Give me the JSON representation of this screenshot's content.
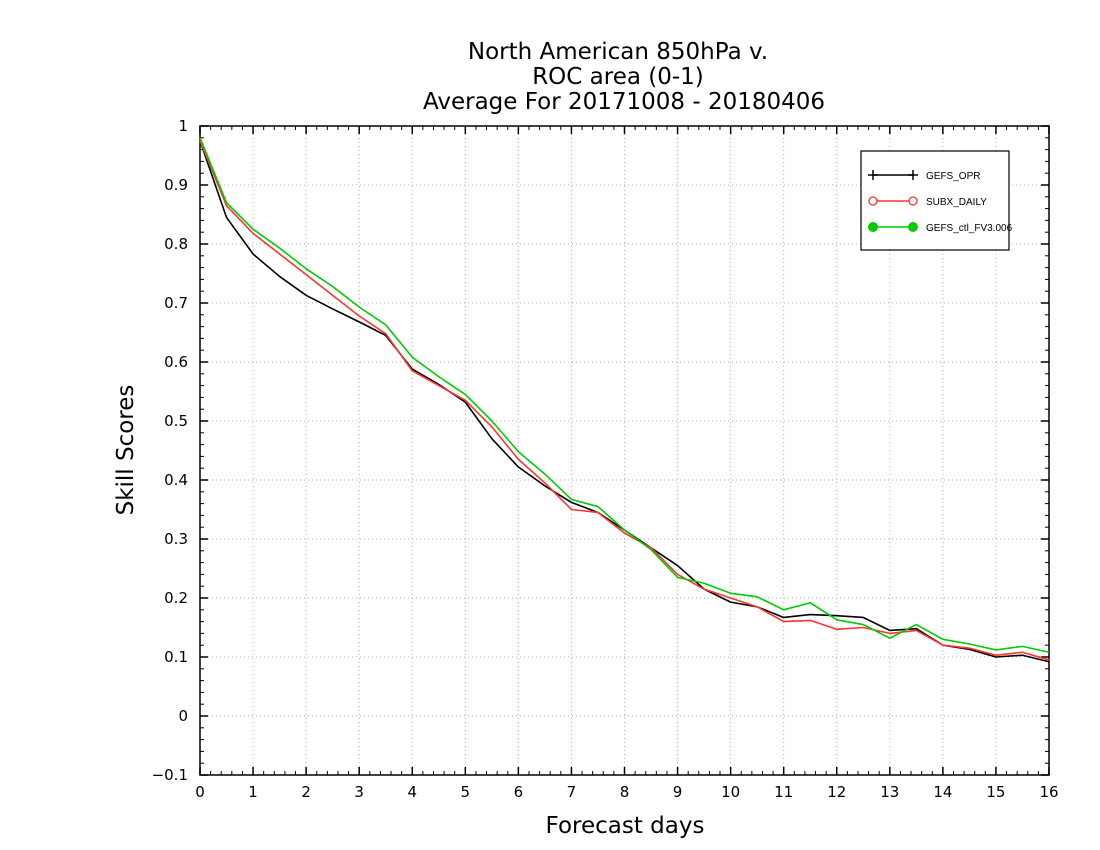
{
  "chart_data": {
    "type": "line",
    "title": [
      "North American 850hPa v.",
      "ROC area (0-1)",
      "Average For 20171008 - 20180406"
    ],
    "xlabel": "Forecast days",
    "ylabel": "Skill Scores",
    "xlim": [
      0,
      16
    ],
    "ylim": [
      -0.1,
      1
    ],
    "xticks": [
      0,
      1,
      2,
      3,
      4,
      5,
      6,
      7,
      8,
      9,
      10,
      11,
      12,
      13,
      14,
      15,
      16
    ],
    "yticks": [
      -0.1,
      0,
      0.1,
      0.2,
      0.3,
      0.4,
      0.5,
      0.6,
      0.7,
      0.8,
      0.9,
      1
    ],
    "ytick_labels": [
      "−0.1",
      "0",
      "0.1",
      "0.2",
      "0.3",
      "0.4",
      "0.5",
      "0.6",
      "0.7",
      "0.8",
      "0.9",
      "1"
    ],
    "grid": true,
    "legend_position": "top-right",
    "x": [
      0,
      0.5,
      1,
      1.5,
      2,
      2.5,
      3,
      3.5,
      4,
      4.5,
      5,
      5.5,
      6,
      6.5,
      7,
      7.5,
      8,
      8.5,
      9,
      9.5,
      10,
      10.5,
      11,
      11.5,
      12,
      12.5,
      13,
      13.5,
      14,
      14.5,
      15,
      15.5,
      16
    ],
    "series": [
      {
        "name": "GEFS_OPR",
        "color": "#000000",
        "marker": "plus",
        "values": [
          0.975,
          0.845,
          0.783,
          0.745,
          0.713,
          0.69,
          0.668,
          0.645,
          0.588,
          0.562,
          0.532,
          0.47,
          0.422,
          0.39,
          0.362,
          0.345,
          0.315,
          0.285,
          0.255,
          0.215,
          0.193,
          0.185,
          0.167,
          0.172,
          0.17,
          0.167,
          0.145,
          0.148,
          0.12,
          0.113,
          0.1,
          0.103,
          0.092
        ]
      },
      {
        "name": "SUBX_DAILY",
        "color": "#ff3333",
        "marker": "open-circle",
        "values": [
          0.975,
          0.865,
          0.818,
          0.783,
          0.748,
          0.713,
          0.678,
          0.648,
          0.585,
          0.56,
          0.535,
          0.49,
          0.435,
          0.395,
          0.35,
          0.345,
          0.31,
          0.285,
          0.24,
          0.215,
          0.2,
          0.185,
          0.16,
          0.162,
          0.147,
          0.15,
          0.14,
          0.145,
          0.12,
          0.115,
          0.103,
          0.108,
          0.095
        ]
      },
      {
        "name": "GEFS_ctl_FV3.006",
        "color": "#00cc00",
        "marker": "filled-circle",
        "values": [
          0.98,
          0.87,
          0.825,
          0.793,
          0.758,
          0.728,
          0.693,
          0.663,
          0.608,
          0.575,
          0.545,
          0.5,
          0.448,
          0.41,
          0.367,
          0.355,
          0.315,
          0.282,
          0.235,
          0.225,
          0.208,
          0.202,
          0.18,
          0.192,
          0.163,
          0.155,
          0.132,
          0.155,
          0.13,
          0.122,
          0.112,
          0.118,
          0.108
        ]
      }
    ]
  }
}
